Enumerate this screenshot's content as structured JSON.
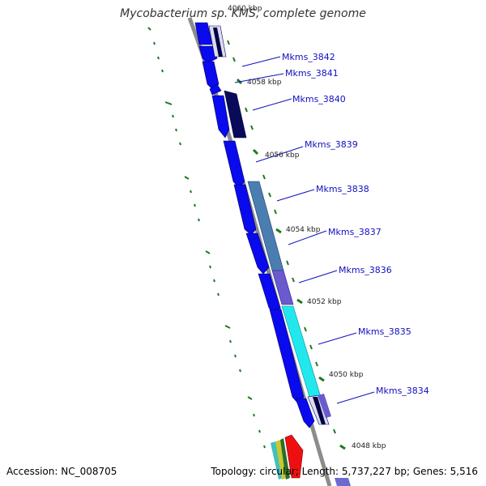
{
  "header": {
    "title": "Mycobacterium sp. KMS, complete genome"
  },
  "footer": {
    "accession": "Accession: NC_008705",
    "topology": "Topology: circular; Length: 5,737,227 bp; Genes: 5,516"
  },
  "colors": {
    "backbone": "#8c8c8c",
    "gene_blue": "#0a0aee",
    "tick_green": "#1d7a1d",
    "label_blue": "#1010c0"
  },
  "ticks": [
    {
      "label": "4060 kbp",
      "faded": true
    },
    {
      "label": "4058 kbp"
    },
    {
      "label": "4056 kbp"
    },
    {
      "label": "4054 kbp"
    },
    {
      "label": "4052 kbp"
    },
    {
      "label": "4050 kbp"
    },
    {
      "label": "4048 kbp"
    }
  ],
  "gene_labels": [
    "Mkms_3842",
    "Mkms_3841",
    "Mkms_3840",
    "Mkms_3839",
    "Mkms_3838",
    "Mkms_3837",
    "Mkms_3836",
    "Mkms_3835",
    "Mkms_3834"
  ]
}
